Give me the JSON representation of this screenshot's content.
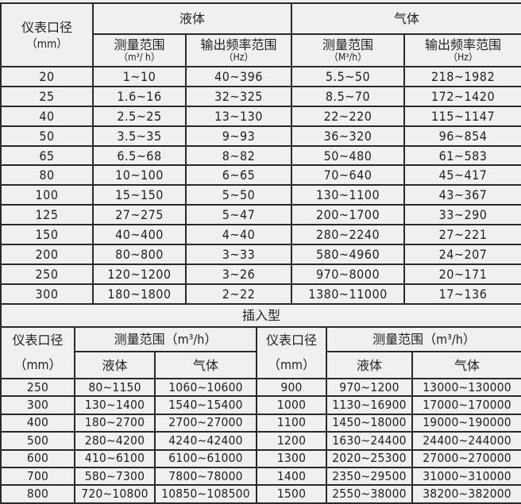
{
  "pipe_table": {
    "header": {
      "diameter": "仪表口径",
      "diameter_unit": "（mm）",
      "liquid": "液体",
      "gas": "气体",
      "range": "测量范围",
      "liquid_range_unit": "（m³/ h）",
      "gas_range_unit": "（M³/h）",
      "freq": "输出频率范围",
      "freq_unit": "（Hz）"
    },
    "rows": [
      [
        "20",
        "1~10",
        "40~396",
        "5.5~50",
        "218~1982"
      ],
      [
        "25",
        "1.6~16",
        "32~325",
        "8.5~70",
        "172~1420"
      ],
      [
        "40",
        "2.5~25",
        "13~130",
        "22~220",
        "115~1147"
      ],
      [
        "50",
        "3.5~35",
        "9~93",
        "36~320",
        "96~854"
      ],
      [
        "65",
        "6.5~68",
        "8~82",
        "50~480",
        "61~583"
      ],
      [
        "80",
        "10~100",
        "6~65",
        "70~640",
        "45~417"
      ],
      [
        "100",
        "15~150",
        "5~50",
        "130~1100",
        "43~367"
      ],
      [
        "125",
        "27~275",
        "5~47",
        "200~1700",
        "33~290"
      ],
      [
        "150",
        "40~400",
        "4~40",
        "280~2240",
        "27~221"
      ],
      [
        "200",
        "80~800",
        "3~33",
        "580~4960",
        "24~207"
      ],
      [
        "250",
        "120~1200",
        "3~26",
        "970~8000",
        "20~171"
      ],
      [
        "300",
        "180~1800",
        "2~22",
        "1380~11000",
        "17~136"
      ]
    ]
  },
  "insert_table": {
    "title": "插入型",
    "header": {
      "diameter": "仪表口径",
      "diameter_unit": "（mm）",
      "range": "测量范围（m³/h）",
      "liquid": "液体",
      "gas": "气体"
    },
    "rows": [
      [
        "250",
        "80~1150",
        "1060~10600",
        "900",
        "970~1200",
        "13000~130000"
      ],
      [
        "300",
        "130~1400",
        "1540~15400",
        "1000",
        "1130~16900",
        "17000~170000"
      ],
      [
        "400",
        "180~2700",
        "2700~27000",
        "1100",
        "1450~18000",
        "19000~190000"
      ],
      [
        "500",
        "280~4200",
        "4240~42400",
        "1200",
        "1630~24400",
        "24400~244000"
      ],
      [
        "600",
        "410~6100",
        "6100~61000",
        "1300",
        "2020~25300",
        "27000~270000"
      ],
      [
        "700",
        "580~7300",
        "7800~78000",
        "1400",
        "2350~29500",
        "31000~310000"
      ],
      [
        "800",
        "720~10800",
        "10850~108500",
        "1500",
        "2550~38000",
        "38200~382000"
      ]
    ]
  }
}
